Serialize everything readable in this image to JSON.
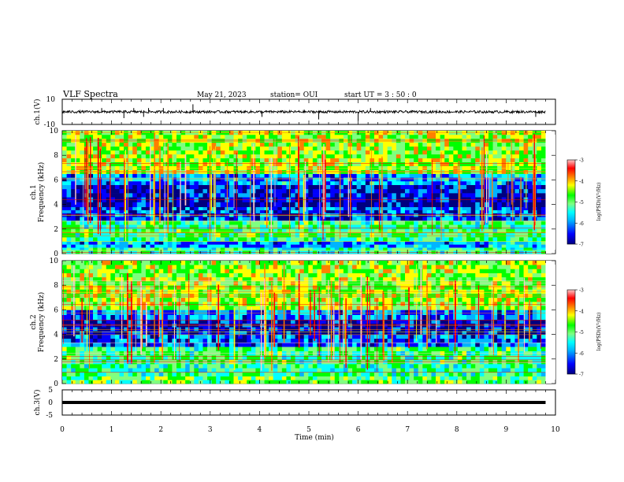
{
  "header": {
    "title": "VLF Spectra",
    "date": "May 21, 2023",
    "station": "station= OUI",
    "start_ut": "start  UT =  3 : 50 : 0"
  },
  "colors": {
    "background": "#ffffff",
    "axes": "#000000",
    "colormap": [
      "#00007f",
      "#0000ff",
      "#00b4ff",
      "#00ffff",
      "#7fff7f",
      "#00ff00",
      "#ffff00",
      "#ff7f00",
      "#ff0000",
      "#ffc8c8"
    ]
  },
  "chart_data": [
    {
      "type": "line",
      "panel": "ch1-waveform",
      "ylabel": "ch.1(V)",
      "ylim": [
        -10,
        10
      ],
      "ytick_labels": [
        "10",
        "-10"
      ],
      "xlim": [
        0,
        10
      ],
      "baseline_v": 0,
      "noise_band_v": [
        -1,
        1
      ],
      "spikes_min": [
        0.8,
        1.25,
        1.45,
        1.65,
        1.75,
        2.05,
        2.65,
        4.05,
        5.2,
        6.0,
        6.25,
        9.6
      ],
      "spike_amplitudes_v": [
        3,
        -5,
        3,
        -4,
        3,
        3,
        6,
        -4,
        -6,
        -7,
        3,
        -4
      ],
      "trace_end_min": 9.8
    },
    {
      "type": "heatmap",
      "panel": "ch1-spectrogram",
      "ylabel": "ch.1\nFrequency (kHz)",
      "xlim": [
        0,
        10
      ],
      "ylim": [
        0,
        10
      ],
      "ytick_labels": [
        "0",
        "2",
        "4",
        "6",
        "8",
        "10"
      ],
      "data_end_min": 9.8,
      "colorbar": {
        "label": "log(PSD)(V²/Hz)",
        "range": [
          -7,
          -3
        ],
        "tick_labels": [
          "-3",
          "-4",
          "-5",
          "-6",
          "-7"
        ]
      },
      "bands_khz": [
        {
          "from": 0,
          "to": 0.5,
          "level": -5.4
        },
        {
          "from": 0.5,
          "to": 1.0,
          "level": -6.0
        },
        {
          "from": 1.0,
          "to": 2.7,
          "level": -5.2
        },
        {
          "from": 2.7,
          "to": 3.3,
          "level": -6.3
        },
        {
          "from": 3.3,
          "to": 3.8,
          "level": -6.2
        },
        {
          "from": 3.8,
          "to": 4.6,
          "level": -6.7
        },
        {
          "from": 4.6,
          "to": 5.6,
          "level": -6.5
        },
        {
          "from": 5.6,
          "to": 6.5,
          "level": -6.0
        },
        {
          "from": 6.5,
          "to": 10,
          "level": -4.7
        }
      ]
    },
    {
      "type": "heatmap",
      "panel": "ch2-spectrogram",
      "ylabel": "ch.2\nFrequency (kHz)",
      "xlim": [
        0,
        10
      ],
      "ylim": [
        0,
        10
      ],
      "ytick_labels": [
        "0",
        "2",
        "4",
        "6",
        "8",
        "10"
      ],
      "data_end_min": 9.8,
      "colorbar": {
        "label": "log(PSD)(V²/Hz)",
        "range": [
          -7,
          -3
        ],
        "tick_labels": [
          "-3",
          "-4",
          "-5",
          "-6",
          "-7"
        ]
      },
      "bands_khz": [
        {
          "from": 0,
          "to": 0.6,
          "level": -5.0
        },
        {
          "from": 0.6,
          "to": 1.6,
          "level": -5.3
        },
        {
          "from": 1.6,
          "to": 3.0,
          "level": -5.2
        },
        {
          "from": 3.0,
          "to": 4.0,
          "level": -6.2
        },
        {
          "from": 4.0,
          "to": 5.2,
          "level": -6.6
        },
        {
          "from": 5.2,
          "to": 6.0,
          "level": -6.1
        },
        {
          "from": 6.0,
          "to": 10,
          "level": -4.7
        }
      ]
    },
    {
      "type": "line",
      "panel": "ch3-waveform",
      "ylabel": "ch.3(V)",
      "ylim": [
        -5,
        5
      ],
      "ytick_labels": [
        "5",
        "0",
        "-5"
      ],
      "xlim": [
        0,
        10
      ],
      "value_v": 0,
      "trace_end_min": 9.8
    }
  ],
  "x_axis": {
    "label": "Time (min)",
    "tick_labels": [
      "0",
      "1",
      "2",
      "3",
      "4",
      "5",
      "6",
      "7",
      "8",
      "9",
      "10"
    ]
  }
}
